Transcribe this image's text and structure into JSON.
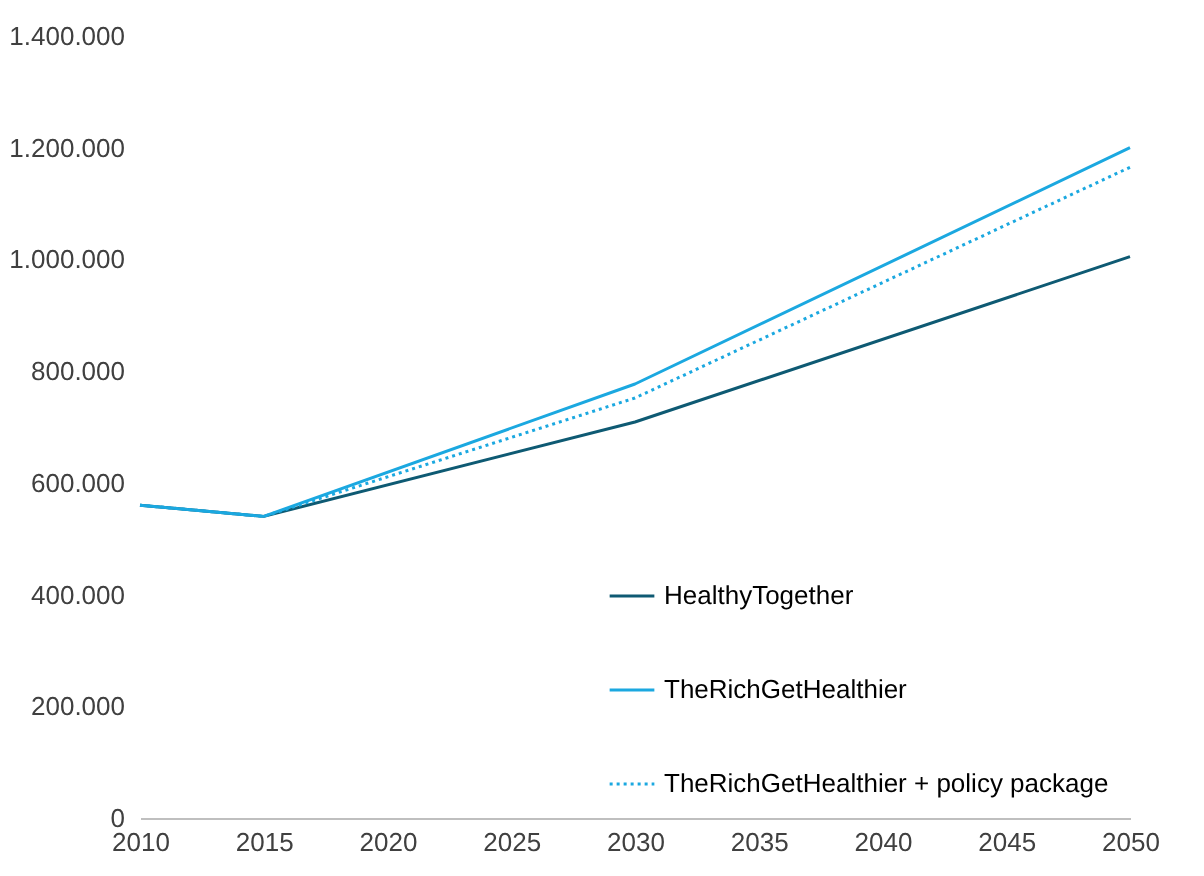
{
  "chart_data": {
    "type": "line",
    "x": [
      2010,
      2015,
      2030,
      2050
    ],
    "series": [
      {
        "name": "HealthyTogether",
        "color": "#0e5a73",
        "line_style": "solid",
        "values": [
          560000,
          540000,
          709000,
          1005000
        ]
      },
      {
        "name": "TheRichGetHealthier",
        "color": "#1ba8e0",
        "line_style": "solid",
        "values": [
          560000,
          540000,
          777000,
          1200000
        ]
      },
      {
        "name": "TheRichGetHealthier + policy package",
        "color": "#1ba8e0",
        "line_style": "dotted",
        "values": [
          560000,
          540000,
          752000,
          1165000
        ]
      }
    ],
    "xlim": [
      2010,
      2050
    ],
    "xticks": [
      2010,
      2015,
      2020,
      2025,
      2030,
      2035,
      2040,
      2045,
      2050
    ],
    "ylim": [
      0,
      1400000
    ],
    "yticks": [
      {
        "value": 0,
        "label": "0"
      },
      {
        "value": 200000,
        "label": "200.000"
      },
      {
        "value": 400000,
        "label": "400.000"
      },
      {
        "value": 600000,
        "label": "600.000"
      },
      {
        "value": 800000,
        "label": "800.000"
      },
      {
        "value": 1000000,
        "label": "1.000.000"
      },
      {
        "value": 1200000,
        "label": "1.200.000"
      },
      {
        "value": 1400000,
        "label": "1.400.000"
      }
    ],
    "grid": false,
    "legend": "bottom right",
    "marker": "none"
  }
}
